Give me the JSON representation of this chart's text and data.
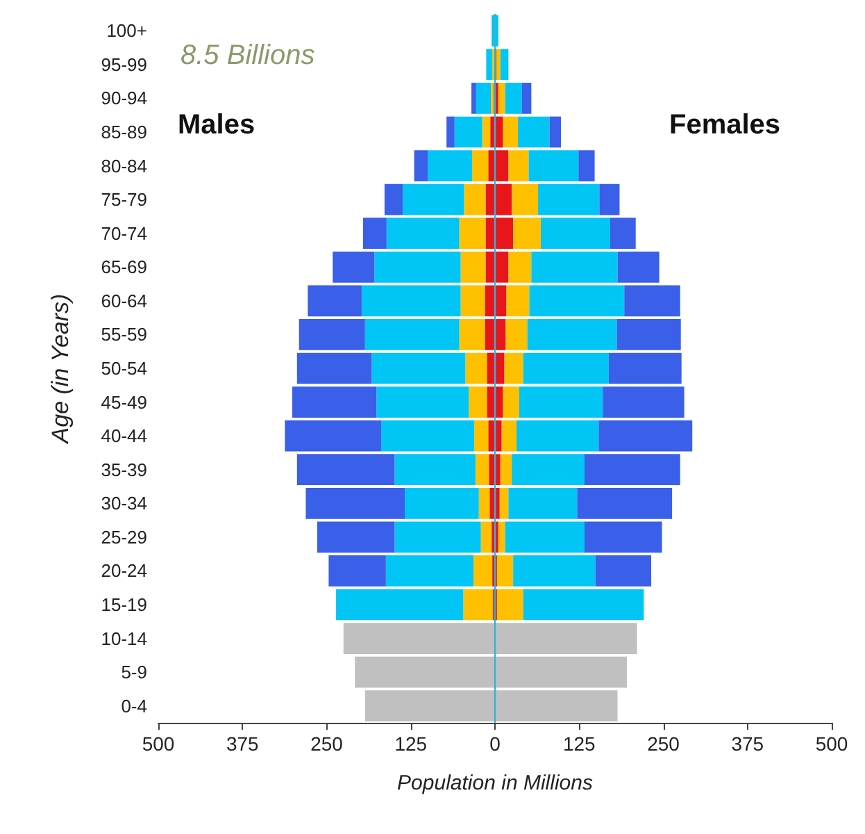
{
  "chart_data": {
    "type": "bar",
    "orientation": "horizontal",
    "stacked": true,
    "xlabel": "Population in Millions",
    "ylabel": "Age (in Years)",
    "annotations": [
      "8.5 Billions",
      "Males",
      "Females"
    ],
    "categories": [
      "100+",
      "95-99",
      "90-94",
      "85-89",
      "80-84",
      "75-79",
      "70-74",
      "65-69",
      "60-64",
      "55-59",
      "50-54",
      "45-49",
      "40-44",
      "35-39",
      "30-34",
      "25-29",
      "20-24",
      "15-19",
      "10-14",
      "5-9",
      "0-4"
    ],
    "series": [
      {
        "color": "#e8151a",
        "values": [
          null,
          -1,
          -2,
          -7,
          -10,
          -14,
          -14,
          -14,
          -15,
          -15,
          -12,
          -12,
          -10,
          -9,
          -8,
          -5,
          -4,
          -3,
          null,
          null,
          null
        ]
      },
      {
        "color": "#ffc000",
        "values": [
          null,
          -3,
          -4,
          -12,
          -24,
          -32,
          -39,
          -37,
          -36,
          -38,
          -32,
          -27,
          -21,
          -20,
          -16,
          -16,
          -28,
          -44,
          null,
          null,
          null
        ]
      },
      {
        "color": "#00c5f5",
        "values": [
          -5,
          -9,
          -22,
          -41,
          -66,
          -91,
          -108,
          -128,
          -147,
          -140,
          -139,
          -137,
          -138,
          -120,
          -110,
          -128,
          -130,
          -189,
          null,
          null,
          null
        ]
      },
      {
        "color": "#3a5fe8",
        "values": [
          null,
          null,
          -7,
          -12,
          -20,
          -27,
          -35,
          -62,
          -80,
          -98,
          -111,
          -125,
          -143,
          -145,
          -147,
          -115,
          -85,
          null,
          null,
          null,
          null
        ]
      },
      {
        "color": "#c0c0c0",
        "values": [
          null,
          null,
          null,
          null,
          null,
          null,
          null,
          null,
          null,
          null,
          null,
          null,
          null,
          null,
          null,
          null,
          null,
          null,
          -225,
          -208,
          -193
        ]
      },
      {
        "color": "#e8151a",
        "values": [
          null,
          2,
          5,
          12,
          20,
          25,
          27,
          20,
          17,
          16,
          14,
          12,
          10,
          8,
          7,
          5,
          3,
          3,
          null,
          null,
          null
        ]
      },
      {
        "color": "#ffc000",
        "values": [
          null,
          6,
          10,
          22,
          30,
          39,
          41,
          34,
          34,
          32,
          28,
          24,
          22,
          17,
          13,
          10,
          24,
          39,
          null,
          null,
          null
        ]
      },
      {
        "color": "#00c5f5",
        "values": [
          5,
          12,
          25,
          47,
          74,
          91,
          103,
          128,
          141,
          133,
          127,
          124,
          122,
          108,
          102,
          118,
          122,
          179,
          null,
          null,
          null
        ]
      },
      {
        "color": "#3a5fe8",
        "values": [
          null,
          null,
          14,
          17,
          24,
          30,
          38,
          62,
          83,
          95,
          108,
          121,
          139,
          142,
          141,
          115,
          83,
          null,
          null,
          null,
          null
        ]
      },
      {
        "color": "#c0c0c0",
        "values": [
          null,
          null,
          null,
          null,
          null,
          null,
          null,
          null,
          null,
          null,
          null,
          null,
          null,
          null,
          null,
          null,
          null,
          null,
          211,
          196,
          182
        ]
      }
    ],
    "xlim": [
      -500,
      500
    ],
    "xticks": [
      {
        "value": -500,
        "label": "500"
      },
      {
        "value": -375,
        "label": "375"
      },
      {
        "value": -250,
        "label": "250"
      },
      {
        "value": -125,
        "label": "125"
      },
      0,
      125,
      250,
      375,
      500
    ],
    "ref_lines": [
      {
        "axis": "x",
        "value": 0,
        "color": "#33b5d5"
      }
    ]
  }
}
